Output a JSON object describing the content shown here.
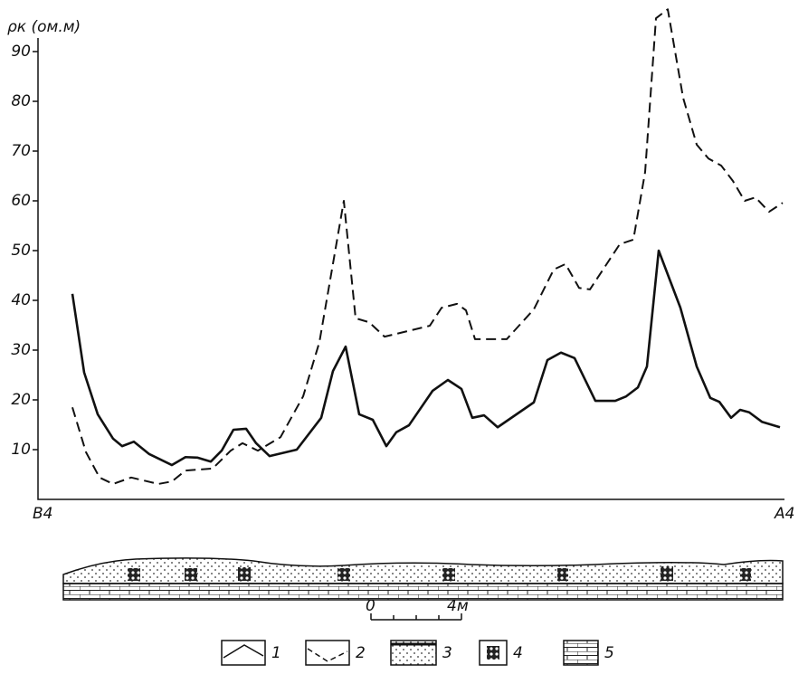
{
  "chart_data": {
    "type": "line",
    "y_label": "ρк (ом.м)",
    "x_start_label": "В4",
    "x_end_label": "А4",
    "xlim": [
      0,
      33
    ],
    "ylim": [
      0,
      100
    ],
    "yticks": [
      10,
      20,
      30,
      40,
      50,
      60,
      70,
      80,
      90
    ],
    "series": [
      {
        "name": "1",
        "color": "#111111",
        "dash": false,
        "x": [
          1.52,
          2.04,
          2.64,
          3.32,
          3.72,
          4.24,
          4.92,
          5.92,
          6.52,
          7.04,
          7.64,
          8.12,
          8.64,
          9.2,
          9.64,
          10.24,
          11.44,
          12.52,
          13.04,
          13.6,
          14.2,
          14.8,
          15.4,
          15.84,
          16.4,
          17.44,
          18.12,
          18.72,
          19.2,
          19.72,
          20.32,
          21.92,
          22.52,
          23.12,
          23.72,
          24.64,
          25.52,
          26.0,
          26.52,
          26.92,
          27.44,
          28.4,
          29.12,
          29.72,
          30.12,
          30.64,
          31.04,
          31.44,
          32.0,
          32.8
        ],
        "values": [
          41.3,
          25.5,
          17.1,
          12.2,
          10.7,
          11.6,
          9.1,
          6.9,
          8.5,
          8.4,
          7.6,
          9.8,
          14.0,
          14.2,
          11.3,
          8.7,
          10.0,
          16.4,
          25.8,
          30.7,
          17.1,
          16.0,
          10.7,
          13.5,
          14.9,
          21.8,
          24.0,
          22.2,
          16.4,
          16.9,
          14.5,
          19.5,
          28.0,
          29.5,
          28.4,
          19.8,
          19.8,
          20.7,
          22.5,
          26.7,
          50.0,
          38.5,
          26.7,
          20.4,
          19.6,
          16.4,
          18.0,
          17.5,
          15.6,
          14.5
        ]
      },
      {
        "name": "2",
        "color": "#111111",
        "dash": true,
        "x": [
          1.52,
          2.12,
          2.72,
          3.32,
          4.12,
          5.32,
          5.92,
          6.52,
          7.72,
          8.52,
          9.04,
          9.72,
          10.72,
          11.72,
          12.44,
          13.52,
          14.04,
          14.64,
          15.32,
          17.32,
          17.84,
          18.52,
          18.92,
          19.32,
          20.72,
          21.92,
          22.8,
          23.32,
          23.92,
          24.4,
          25.72,
          26.32,
          26.84,
          27.32,
          27.84,
          28.52,
          29.12,
          29.64,
          30.2,
          30.72,
          31.24,
          31.72,
          32.32,
          32.92
        ],
        "values": [
          18.5,
          9.5,
          4.4,
          3.1,
          4.4,
          3.1,
          3.6,
          5.8,
          6.2,
          9.8,
          11.3,
          9.8,
          12.5,
          20.7,
          31.6,
          60.0,
          36.4,
          35.6,
          32.7,
          34.9,
          38.5,
          39.3,
          38.0,
          32.2,
          32.2,
          38.2,
          46.2,
          47.3,
          42.5,
          42.2,
          51.3,
          52.2,
          65.8,
          96.7,
          98.5,
          80.7,
          71.3,
          68.5,
          67.1,
          64.0,
          60.0,
          60.7,
          57.8,
          59.6
        ]
      }
    ]
  },
  "scale_bar": {
    "labels": [
      "0",
      "4м"
    ]
  },
  "section_legend": [
    "3",
    "4",
    "5"
  ]
}
